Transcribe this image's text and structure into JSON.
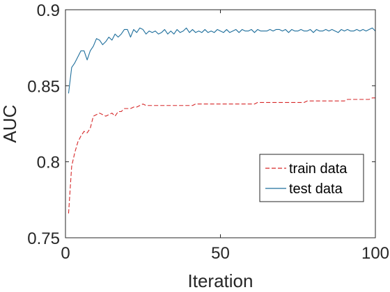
{
  "chart_data": {
    "type": "line",
    "title": "",
    "xlabel": "Iteration",
    "ylabel": "AUC",
    "xlim": [
      0,
      100
    ],
    "ylim": [
      0.75,
      0.9
    ],
    "xticks": [
      0,
      50,
      100
    ],
    "xtick_labels": [
      "0",
      "50",
      "100"
    ],
    "yticks": [
      0.75,
      0.8,
      0.85,
      0.9
    ],
    "ytick_labels": [
      "0.75",
      "0.8",
      "0.85",
      "0.9"
    ],
    "grid": false,
    "box": true,
    "legend_position": "lower-right",
    "series": [
      {
        "name": "train data",
        "color": "#d62728",
        "line_style": "dashed",
        "x": [
          1,
          2,
          3,
          4,
          5,
          6,
          7,
          8,
          9,
          10,
          11,
          12,
          13,
          14,
          15,
          16,
          17,
          18,
          19,
          20,
          21,
          22,
          23,
          24,
          25,
          26,
          27,
          28,
          29,
          30,
          31,
          32,
          33,
          34,
          35,
          36,
          37,
          38,
          39,
          40,
          41,
          42,
          43,
          44,
          45,
          46,
          47,
          48,
          49,
          50,
          51,
          52,
          53,
          54,
          55,
          56,
          57,
          58,
          59,
          60,
          61,
          62,
          63,
          64,
          65,
          66,
          67,
          68,
          69,
          70,
          71,
          72,
          73,
          74,
          75,
          76,
          77,
          78,
          79,
          80,
          81,
          82,
          83,
          84,
          85,
          86,
          87,
          88,
          89,
          90,
          91,
          92,
          93,
          94,
          95,
          96,
          97,
          98,
          99,
          100
        ],
        "values": [
          0.766,
          0.797,
          0.806,
          0.813,
          0.817,
          0.82,
          0.819,
          0.822,
          0.83,
          0.831,
          0.832,
          0.831,
          0.83,
          0.831,
          0.832,
          0.83,
          0.833,
          0.833,
          0.835,
          0.835,
          0.835,
          0.836,
          0.836,
          0.837,
          0.838,
          0.837,
          0.837,
          0.837,
          0.837,
          0.837,
          0.837,
          0.837,
          0.837,
          0.837,
          0.837,
          0.837,
          0.837,
          0.837,
          0.837,
          0.837,
          0.837,
          0.838,
          0.838,
          0.838,
          0.838,
          0.838,
          0.838,
          0.838,
          0.838,
          0.838,
          0.838,
          0.838,
          0.838,
          0.838,
          0.838,
          0.838,
          0.838,
          0.838,
          0.838,
          0.838,
          0.838,
          0.839,
          0.839,
          0.839,
          0.839,
          0.839,
          0.839,
          0.839,
          0.839,
          0.839,
          0.839,
          0.839,
          0.839,
          0.839,
          0.839,
          0.839,
          0.839,
          0.84,
          0.84,
          0.84,
          0.84,
          0.84,
          0.84,
          0.84,
          0.84,
          0.84,
          0.84,
          0.84,
          0.84,
          0.84,
          0.841,
          0.841,
          0.841,
          0.841,
          0.841,
          0.841,
          0.841,
          0.841,
          0.842,
          0.842
        ]
      },
      {
        "name": "test data",
        "color": "#1f6f9c",
        "line_style": "solid",
        "x": [
          1,
          2,
          3,
          4,
          5,
          6,
          7,
          8,
          9,
          10,
          11,
          12,
          13,
          14,
          15,
          16,
          17,
          18,
          19,
          20,
          21,
          22,
          23,
          24,
          25,
          26,
          27,
          28,
          29,
          30,
          31,
          32,
          33,
          34,
          35,
          36,
          37,
          38,
          39,
          40,
          41,
          42,
          43,
          44,
          45,
          46,
          47,
          48,
          49,
          50,
          51,
          52,
          53,
          54,
          55,
          56,
          57,
          58,
          59,
          60,
          61,
          62,
          63,
          64,
          65,
          66,
          67,
          68,
          69,
          70,
          71,
          72,
          73,
          74,
          75,
          76,
          77,
          78,
          79,
          80,
          81,
          82,
          83,
          84,
          85,
          86,
          87,
          88,
          89,
          90,
          91,
          92,
          93,
          94,
          95,
          96,
          97,
          98,
          99,
          100
        ],
        "values": [
          0.845,
          0.862,
          0.865,
          0.869,
          0.873,
          0.873,
          0.867,
          0.873,
          0.876,
          0.881,
          0.88,
          0.877,
          0.879,
          0.882,
          0.88,
          0.884,
          0.882,
          0.884,
          0.887,
          0.887,
          0.882,
          0.887,
          0.885,
          0.888,
          0.887,
          0.884,
          0.886,
          0.885,
          0.886,
          0.884,
          0.885,
          0.887,
          0.884,
          0.886,
          0.884,
          0.887,
          0.885,
          0.886,
          0.888,
          0.885,
          0.887,
          0.885,
          0.886,
          0.885,
          0.887,
          0.885,
          0.886,
          0.885,
          0.887,
          0.886,
          0.885,
          0.887,
          0.885,
          0.886,
          0.887,
          0.885,
          0.887,
          0.886,
          0.886,
          0.887,
          0.885,
          0.887,
          0.886,
          0.886,
          0.886,
          0.887,
          0.886,
          0.887,
          0.887,
          0.886,
          0.887,
          0.885,
          0.887,
          0.886,
          0.886,
          0.887,
          0.886,
          0.886,
          0.887,
          0.885,
          0.887,
          0.886,
          0.886,
          0.887,
          0.886,
          0.887,
          0.886,
          0.885,
          0.887,
          0.886,
          0.887,
          0.886,
          0.886,
          0.887,
          0.886,
          0.887,
          0.886,
          0.887,
          0.888,
          0.886
        ]
      }
    ]
  }
}
